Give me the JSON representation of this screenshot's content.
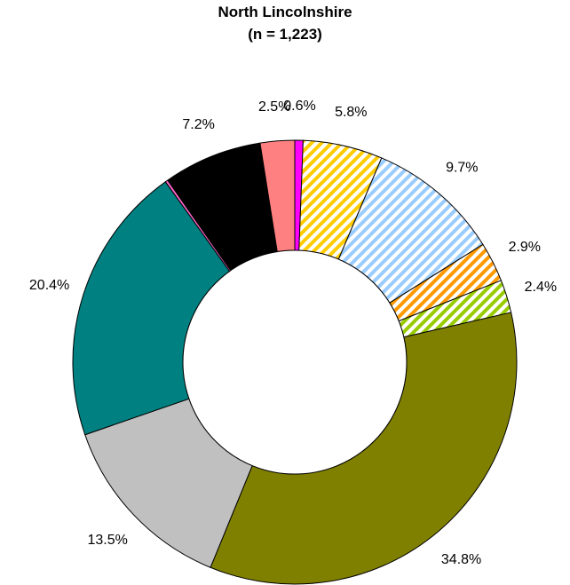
{
  "chart_data": {
    "type": "pie",
    "title": "North Lincolnshire",
    "subtitle": "(n = 1,223)",
    "donut": true,
    "legend": "none",
    "slices": [
      {
        "value": 0.6,
        "label": "0.6%",
        "color": "#ff00ff",
        "pattern": "solid"
      },
      {
        "value": 5.8,
        "label": "5.8%",
        "color": "#ffcc00",
        "pattern": "diagonal-stripes"
      },
      {
        "value": 9.7,
        "label": "9.7%",
        "color": "#99ccff",
        "pattern": "diagonal-stripes"
      },
      {
        "value": 2.9,
        "label": "2.9%",
        "color": "#ff9900",
        "pattern": "diagonal-stripes"
      },
      {
        "value": 2.4,
        "label": "2.4%",
        "color": "#99cc00",
        "pattern": "diagonal-stripes"
      },
      {
        "value": 34.8,
        "label": "34.8%",
        "color": "#808000",
        "pattern": "solid"
      },
      {
        "value": 13.5,
        "label": "13.5%",
        "color": "#c0c0c0",
        "pattern": "solid"
      },
      {
        "value": 20.4,
        "label": "20.4%",
        "color": "#008080",
        "pattern": "solid"
      },
      {
        "value": 0.2,
        "label": "",
        "color": "#ff66cc",
        "pattern": "solid"
      },
      {
        "value": 7.2,
        "label": "7.2%",
        "color": "#000000",
        "pattern": "solid"
      },
      {
        "value": 2.5,
        "label": "2.5%",
        "color": "#ff8080",
        "pattern": "solid"
      }
    ]
  }
}
